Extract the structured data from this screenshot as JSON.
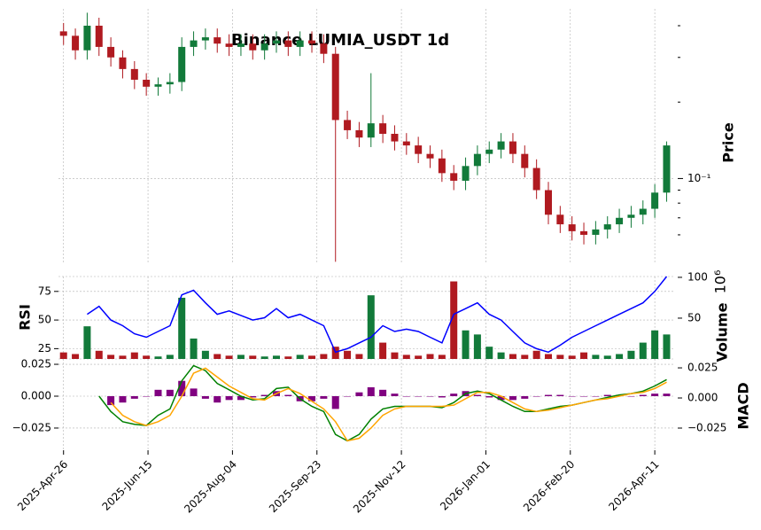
{
  "chart_data": [
    {
      "type": "candlestick",
      "title": "Binance LUMIA_USDT 1d",
      "ylabel": "Price",
      "log_scale": true,
      "grid": true,
      "up_color": "#127a3a",
      "down_color": "#b01a20",
      "xlim": [
        "2025-04-23",
        "2026-04-23"
      ],
      "x": [
        "2025-04-26",
        "2025-05-03",
        "2025-05-10",
        "2025-05-17",
        "2025-05-24",
        "2025-05-31",
        "2025-06-07",
        "2025-06-14",
        "2025-06-21",
        "2025-06-28",
        "2025-07-05",
        "2025-07-12",
        "2025-07-19",
        "2025-07-26",
        "2025-08-02",
        "2025-08-09",
        "2025-08-16",
        "2025-08-23",
        "2025-08-30",
        "2025-09-06",
        "2025-09-13",
        "2025-09-20",
        "2025-09-27",
        "2025-10-04",
        "2025-10-11",
        "2025-10-18",
        "2025-10-25",
        "2025-11-01",
        "2025-11-08",
        "2025-11-15",
        "2025-11-22",
        "2025-11-29",
        "2025-12-06",
        "2025-12-13",
        "2025-12-20",
        "2025-12-27",
        "2026-01-03",
        "2026-01-10",
        "2026-01-17",
        "2026-01-24",
        "2026-01-31",
        "2026-02-07",
        "2026-02-14",
        "2026-02-21",
        "2026-02-28",
        "2026-03-07",
        "2026-03-14",
        "2026-03-21",
        "2026-03-28",
        "2026-04-04",
        "2026-04-11",
        "2026-04-18"
      ],
      "open": [
        0.38,
        0.365,
        0.32,
        0.4,
        0.33,
        0.3,
        0.27,
        0.245,
        0.23,
        0.235,
        0.24,
        0.33,
        0.35,
        0.36,
        0.34,
        0.33,
        0.34,
        0.32,
        0.34,
        0.35,
        0.33,
        0.35,
        0.34,
        0.31,
        0.17,
        0.155,
        0.145,
        0.165,
        0.15,
        0.14,
        0.135,
        0.125,
        0.12,
        0.105,
        0.098,
        0.112,
        0.125,
        0.13,
        0.14,
        0.125,
        0.11,
        0.09,
        0.072,
        0.066,
        0.062,
        0.06,
        0.063,
        0.066,
        0.07,
        0.072,
        0.076,
        0.088
      ],
      "high": [
        0.41,
        0.39,
        0.45,
        0.43,
        0.36,
        0.32,
        0.29,
        0.26,
        0.25,
        0.26,
        0.36,
        0.38,
        0.39,
        0.39,
        0.37,
        0.37,
        0.37,
        0.37,
        0.38,
        0.38,
        0.38,
        0.38,
        0.37,
        0.33,
        0.185,
        0.167,
        0.26,
        0.178,
        0.162,
        0.151,
        0.146,
        0.135,
        0.13,
        0.113,
        0.121,
        0.135,
        0.14,
        0.151,
        0.151,
        0.135,
        0.119,
        0.097,
        0.078,
        0.071,
        0.067,
        0.068,
        0.071,
        0.076,
        0.078,
        0.082,
        0.095,
        0.14
      ],
      "low": [
        0.336,
        0.294,
        0.294,
        0.304,
        0.276,
        0.248,
        0.225,
        0.212,
        0.212,
        0.216,
        0.221,
        0.304,
        0.322,
        0.313,
        0.304,
        0.304,
        0.294,
        0.294,
        0.313,
        0.304,
        0.304,
        0.313,
        0.285,
        0.047,
        0.143,
        0.133,
        0.133,
        0.138,
        0.129,
        0.124,
        0.115,
        0.11,
        0.097,
        0.09,
        0.09,
        0.103,
        0.115,
        0.12,
        0.115,
        0.101,
        0.083,
        0.066,
        0.061,
        0.057,
        0.055,
        0.055,
        0.058,
        0.061,
        0.064,
        0.066,
        0.07,
        0.081
      ],
      "close": [
        0.365,
        0.32,
        0.4,
        0.33,
        0.3,
        0.27,
        0.245,
        0.23,
        0.235,
        0.24,
        0.33,
        0.35,
        0.36,
        0.34,
        0.33,
        0.34,
        0.32,
        0.34,
        0.35,
        0.33,
        0.35,
        0.34,
        0.31,
        0.17,
        0.155,
        0.145,
        0.165,
        0.15,
        0.14,
        0.135,
        0.125,
        0.12,
        0.105,
        0.098,
        0.112,
        0.125,
        0.13,
        0.14,
        0.125,
        0.11,
        0.09,
        0.072,
        0.066,
        0.062,
        0.06,
        0.063,
        0.066,
        0.07,
        0.072,
        0.076,
        0.088,
        0.135
      ],
      "ylim": [
        0.046,
        0.466
      ],
      "yticks": [
        {
          "value": 0.1,
          "label": "10⁻¹"
        }
      ],
      "minor_yticks": [
        0.06,
        0.07,
        0.08,
        0.09,
        0.2,
        0.3,
        0.4
      ]
    },
    {
      "type": "rsi_volume",
      "ylabel": "RSI",
      "y2label": "Volume",
      "y2_offset_label": "10⁶",
      "grid": true,
      "ylim": [
        16,
        88
      ],
      "yticks": [
        25,
        50,
        75
      ],
      "y2lim": [
        0,
        101
      ],
      "y2ticks": [
        50,
        100
      ],
      "rsi": {
        "color": "#0000ff",
        "values": [
          null,
          null,
          55,
          62,
          50,
          45,
          38,
          35,
          40,
          45,
          72,
          76,
          65,
          55,
          58,
          54,
          50,
          52,
          60,
          52,
          55,
          50,
          45,
          22,
          25,
          30,
          35,
          45,
          40,
          42,
          40,
          35,
          30,
          55,
          60,
          65,
          55,
          50,
          40,
          30,
          25,
          22,
          28,
          35,
          40,
          45,
          50,
          55,
          60,
          65,
          75,
          88
        ]
      },
      "volume": {
        "axis": "y2",
        "values": [
          8,
          6,
          40,
          10,
          5,
          4,
          8,
          4,
          3,
          5,
          75,
          25,
          10,
          6,
          4,
          5,
          4,
          3,
          4,
          3,
          5,
          4,
          6,
          15,
          10,
          6,
          78,
          20,
          8,
          5,
          4,
          6,
          5,
          95,
          35,
          30,
          15,
          8,
          6,
          5,
          10,
          6,
          5,
          4,
          8,
          5,
          4,
          6,
          10,
          20,
          35,
          30
        ]
      }
    },
    {
      "type": "macd",
      "ylabel": "MACD",
      "grid": true,
      "ylim": [
        -0.0424,
        0.0292
      ],
      "yticks": [
        0.025,
        {
          "value": 0,
          "label": "0.000"
        },
        {
          "value": -0.025,
          "label": "−0.025"
        }
      ],
      "y2lim": [
        -0.0434,
        0.0324
      ],
      "y2ticks": [
        0.025,
        {
          "value": 0,
          "label": "0.000"
        },
        {
          "value": -0.025,
          "label": "−0.025"
        }
      ],
      "xticks": [
        {
          "value": "2025-04-26",
          "label": "2025-Apr-26"
        },
        {
          "value": "2025-06-15",
          "label": "2025-Jun-15"
        },
        {
          "value": "2025-08-04",
          "label": "2025-Aug-04"
        },
        {
          "value": "2025-09-23",
          "label": "2025-Sep-23"
        },
        {
          "value": "2025-11-12",
          "label": "2025-Nov-12"
        },
        {
          "value": "2026-01-01",
          "label": "2026-Jan-01"
        },
        {
          "value": "2026-02-20",
          "label": "2026-Feb-20"
        },
        {
          "value": "2026-04-11",
          "label": "2026-Apr-11"
        }
      ],
      "macd": {
        "color": "#008000",
        "values": [
          null,
          null,
          null,
          0,
          -0.012,
          -0.02,
          -0.022,
          -0.023,
          -0.015,
          -0.01,
          0.012,
          0.024,
          0.02,
          0.01,
          0.005,
          0,
          -0.003,
          -0.002,
          0.006,
          0.007,
          -0.002,
          -0.008,
          -0.012,
          -0.03,
          -0.035,
          -0.03,
          -0.018,
          -0.01,
          -0.008,
          -0.008,
          -0.008,
          -0.008,
          -0.009,
          -0.005,
          0.002,
          0.004,
          0.002,
          -0.003,
          -0.008,
          -0.012,
          -0.012,
          -0.01,
          -0.008,
          -0.007,
          -0.005,
          -0.003,
          -0.001,
          0.001,
          0.002,
          0.004,
          0.008,
          0.013
        ]
      },
      "signal": {
        "color": "#ffa500",
        "values": [
          null,
          null,
          null,
          null,
          -0.005,
          -0.015,
          -0.02,
          -0.023,
          -0.02,
          -0.015,
          0,
          0.018,
          0.022,
          0.015,
          0.008,
          0.003,
          -0.002,
          -0.003,
          0.002,
          0.006,
          0.002,
          -0.004,
          -0.01,
          -0.02,
          -0.035,
          -0.033,
          -0.025,
          -0.015,
          -0.01,
          -0.008,
          -0.008,
          -0.008,
          -0.008,
          -0.007,
          -0.002,
          0.003,
          0.003,
          0,
          -0.005,
          -0.01,
          -0.012,
          -0.011,
          -0.009,
          -0.007,
          -0.005,
          -0.003,
          -0.002,
          0,
          0.002,
          0.003,
          0.006,
          0.011
        ]
      },
      "histogram": {
        "color": "#800080",
        "values": [
          null,
          null,
          null,
          null,
          -0.007,
          -0.005,
          -0.002,
          0,
          0.005,
          0.005,
          0.012,
          0.006,
          -0.002,
          -0.005,
          -0.003,
          -0.003,
          -0.001,
          0.001,
          0.004,
          0.001,
          -0.004,
          -0.004,
          -0.002,
          -0.01,
          0,
          0.003,
          0.007,
          0.005,
          0.002,
          0,
          0,
          0,
          -0.001,
          0.002,
          0.004,
          0.001,
          -0.001,
          -0.003,
          -0.003,
          -0.002,
          0,
          0.001,
          0.001,
          0,
          0,
          0,
          0.001,
          0.001,
          0,
          0.001,
          0.002,
          0.002
        ]
      }
    }
  ]
}
